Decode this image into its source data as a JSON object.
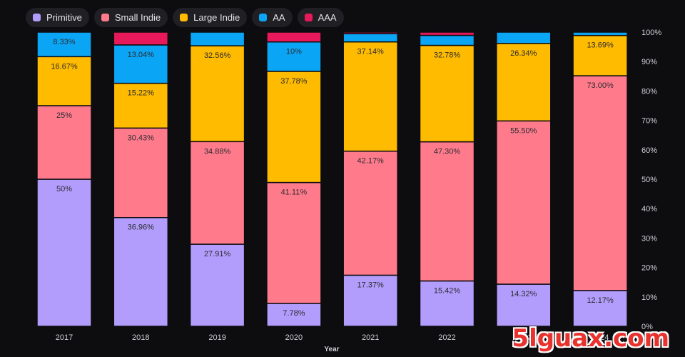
{
  "chart_data": {
    "type": "bar",
    "stacked": true,
    "normalized": true,
    "xlabel": "Year",
    "ylabel": "",
    "ylim": [
      0,
      100
    ],
    "categories": [
      "2017",
      "2018",
      "2019",
      "2020",
      "2021",
      "2022",
      "2023",
      "2024"
    ],
    "x_tick_labels": [
      "2017",
      "2018",
      "2019",
      "2020",
      "2021",
      "2022",
      "2023",
      "2024"
    ],
    "y_ticks": [
      "0%",
      "10%",
      "20%",
      "30%",
      "40%",
      "50%",
      "60%",
      "70%",
      "80%",
      "90%",
      "100%"
    ],
    "legend_position": "top-left",
    "grid": false,
    "series": [
      {
        "name": "Primitive",
        "color": "#b39dfc",
        "values": [
          50,
          36.96,
          27.91,
          7.78,
          17.37,
          15.42,
          14.32,
          12.17
        ],
        "labels": [
          "50%",
          "36.96%",
          "27.91%",
          "7.78%",
          "17.37%",
          "15.42%",
          "14.32%",
          "12.17%"
        ]
      },
      {
        "name": "Small Indie",
        "color": "#ff7b8c",
        "values": [
          25,
          30.43,
          34.88,
          41.11,
          42.17,
          47.3,
          55.5,
          73.0
        ],
        "labels": [
          "25%",
          "30.43%",
          "34.88%",
          "41.11%",
          "42.17%",
          "47.30%",
          "55.50%",
          "73.00%"
        ]
      },
      {
        "name": "Large Indie",
        "color": "#ffbb00",
        "values": [
          16.67,
          15.22,
          32.56,
          37.78,
          37.14,
          32.78,
          26.34,
          13.69
        ],
        "labels": [
          "16.67%",
          "15.22%",
          "32.56%",
          "37.78%",
          "37.14%",
          "32.78%",
          "26.34%",
          "13.69%"
        ]
      },
      {
        "name": "AA",
        "color": "#0ba5f5",
        "values": [
          8.33,
          13.04,
          4.65,
          10,
          2.8,
          3.4,
          3.84,
          1.14
        ],
        "labels": [
          "8.33%",
          "13.04%",
          "",
          "10%",
          "",
          "",
          "",
          ""
        ]
      },
      {
        "name": "AAA",
        "color": "#e8195a",
        "values": [
          0,
          4.35,
          0,
          3.33,
          0.52,
          1.1,
          0,
          0
        ],
        "labels": [
          "",
          "",
          "",
          "",
          "",
          "",
          "",
          ""
        ]
      }
    ]
  },
  "watermark": "5lguax.com"
}
